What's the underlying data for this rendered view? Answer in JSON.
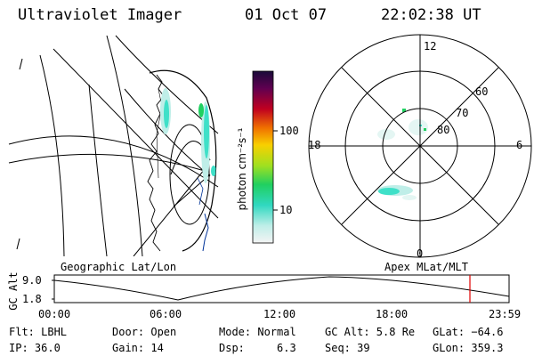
{
  "header": {
    "instrument": "Ultraviolet Imager",
    "date": "01 Oct 07",
    "time": "22:02:38 UT"
  },
  "colorbar": {
    "unit_label": "photon cm⁻²s⁻¹",
    "ticks": [
      "100",
      "10"
    ]
  },
  "polar_plot": {
    "mlt_labels": [
      "12",
      "18",
      "6",
      "0"
    ],
    "lat_labels": [
      "60",
      "70",
      "80"
    ]
  },
  "orbit_panel": {
    "left_label": "Geographic Lat/Lon",
    "right_label": "Apex MLat/MLT",
    "y_axis_label": "GC Alt",
    "y_ticks": [
      "9.0",
      "1.8"
    ],
    "x_ticks": [
      "00:00",
      "06:00",
      "12:00",
      "18:00",
      "23:59"
    ],
    "current_marker_color": "#e00000"
  },
  "info": {
    "row1": [
      "Flt: LBHL",
      "Door: Open",
      "Mode: Normal",
      "GC Alt: 5.8 Re",
      "GLat: −64.6"
    ],
    "row2": [
      "IP: 36.0",
      "Gain: 14",
      "Dsp:     6.3",
      "Seq: 39",
      "GLon: 359.3"
    ]
  },
  "colors": {
    "aurora_cyan": "#3fe0c8",
    "aurora_pale": "#bfeee8",
    "aurora_green": "#20d060"
  }
}
